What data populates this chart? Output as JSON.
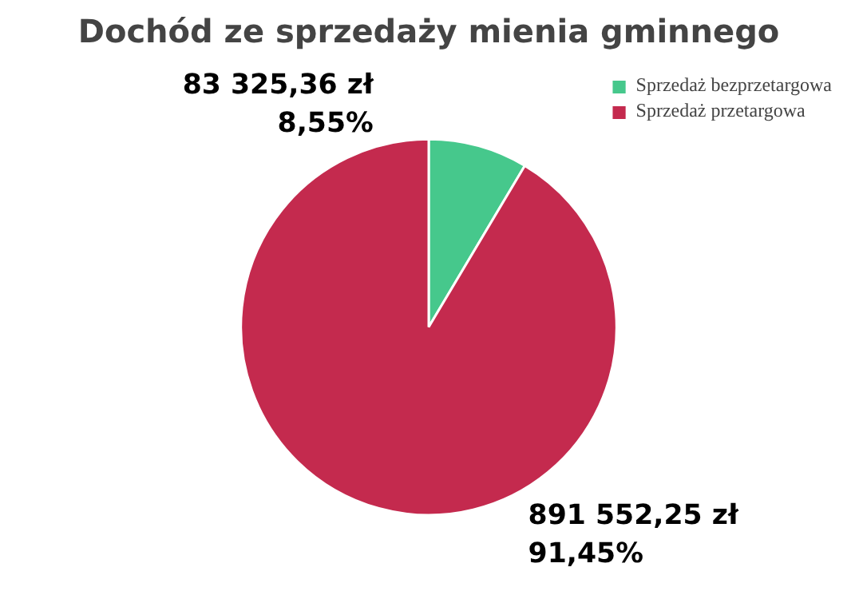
{
  "chart_data": {
    "type": "pie",
    "title": "Dochód ze sprzedaży mienia gminnego",
    "categories": [
      "Sprzedaż bezprzetargowa",
      "Sprzedaż przetargowa"
    ],
    "values": [
      83325.36,
      891552.25
    ],
    "colors": [
      "#46c88c",
      "#c42a4e"
    ],
    "value_labels": [
      "83 325,36 zł\n8,55%",
      "891 552,25 zł\n91,45%"
    ],
    "legend": "top right"
  }
}
